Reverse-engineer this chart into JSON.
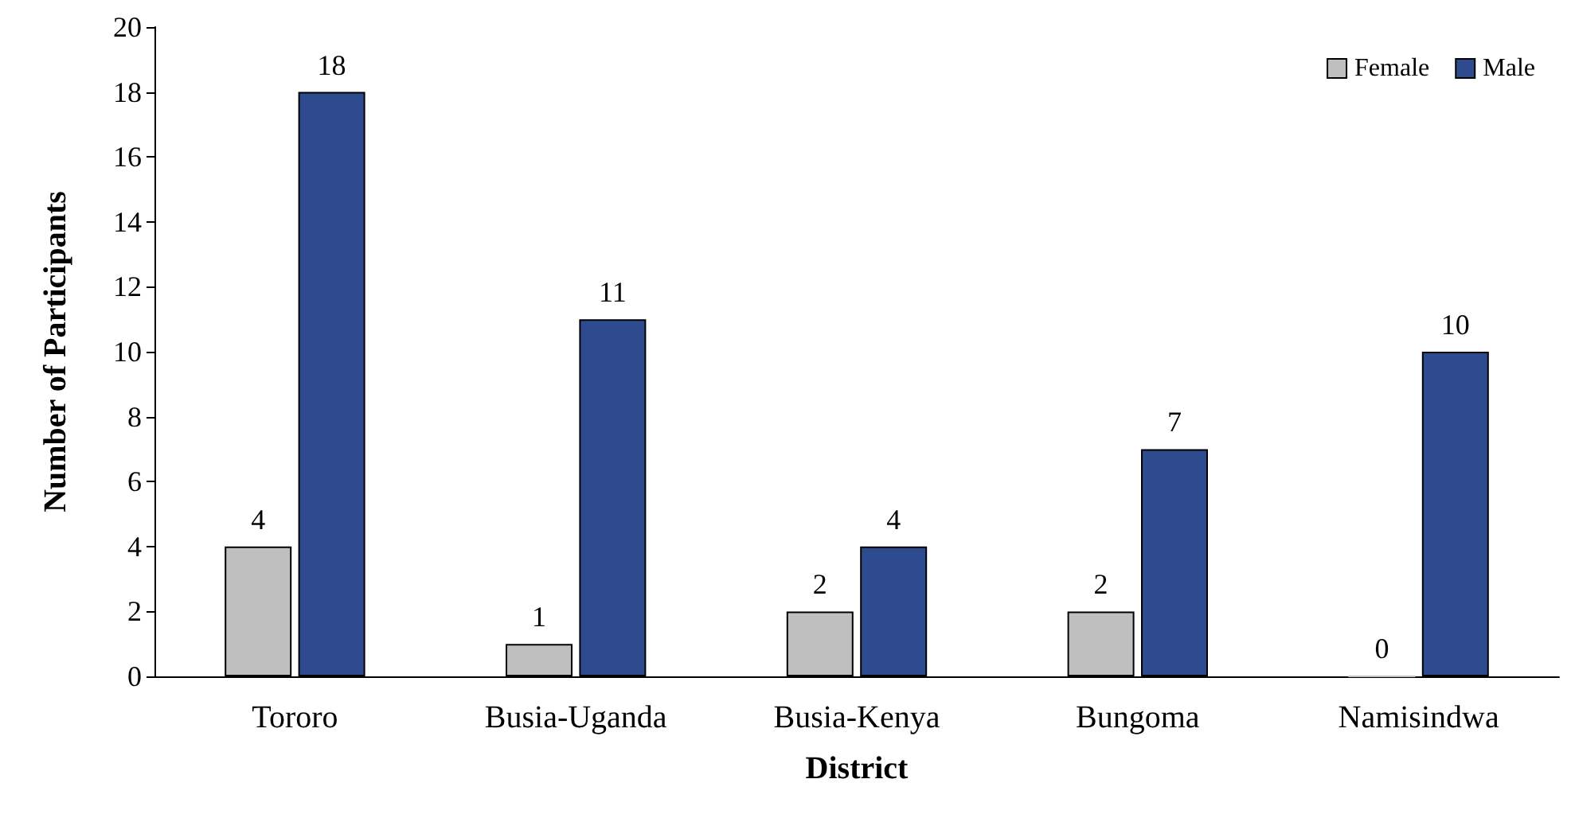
{
  "chart_data": {
    "type": "bar",
    "xlabel": "District",
    "ylabel": "Number of Participants",
    "categories": [
      "Tororo",
      "Busia-Uganda",
      "Busia-Kenya",
      "Bungoma",
      "Namisindwa"
    ],
    "series": [
      {
        "name": "Female",
        "color": "#bfbfbf",
        "values": [
          4,
          1,
          2,
          2,
          0
        ]
      },
      {
        "name": "Male",
        "color": "#2f4b8f",
        "values": [
          18,
          11,
          4,
          7,
          10
        ]
      }
    ],
    "ylim": [
      0,
      20
    ],
    "yticks": [
      0,
      2,
      4,
      6,
      8,
      10,
      12,
      14,
      16,
      18,
      20
    ],
    "data_labels": true,
    "legend": "top right",
    "grid": false
  }
}
